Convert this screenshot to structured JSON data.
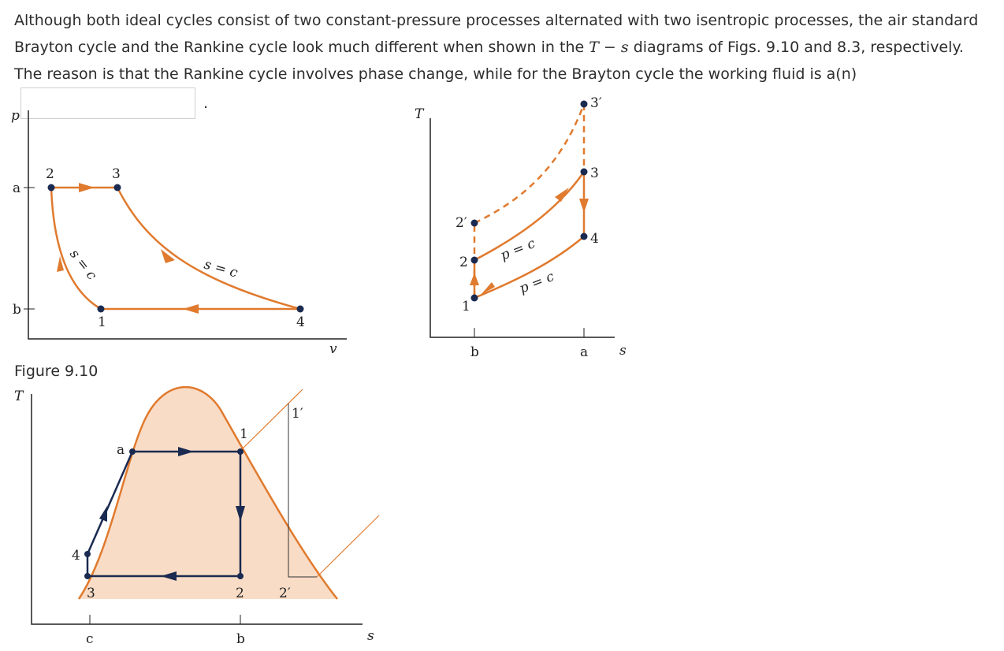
{
  "question": {
    "part1": "Although both ideal cycles consist of two constant-pressure processes alternated with two isentropic processes, the air standard Brayton cycle and the Rankine cycle look much different when shown in the ",
    "formula": "T − s",
    "part2": " diagrams of Figs. 9.10 and 8.3, respectively. The reason is that the Rankine cycle involves phase change, while for the Brayton cycle the working fluid is a(n)",
    "answer_value": "",
    "period": "."
  },
  "fig_pv": {
    "y_axis": "p",
    "x_axis": "v",
    "tick_a": "a",
    "tick_b": "b",
    "points": [
      "1",
      "2",
      "3",
      "4"
    ],
    "curve_label_left": "s = c",
    "curve_label_right": "s = c"
  },
  "fig_ts_brayton": {
    "y_axis": "T",
    "x_axis": "s",
    "tick_a": "a",
    "tick_b": "b",
    "points": [
      "1",
      "2",
      "2′",
      "3",
      "3′",
      "4"
    ],
    "label_upper": "p = c",
    "label_lower": "p = c"
  },
  "caption": "Figure 9.10",
  "fig_ts_rankine": {
    "y_axis": "T",
    "x_axis": "s",
    "tick_c": "c",
    "tick_b": "b",
    "points": [
      "1",
      "1′",
      "2",
      "2′",
      "3",
      "4",
      "a"
    ]
  },
  "colors": {
    "orange": "#e07a2e",
    "navy": "#1a2a50",
    "dome_fill": "#f9dcc6"
  }
}
